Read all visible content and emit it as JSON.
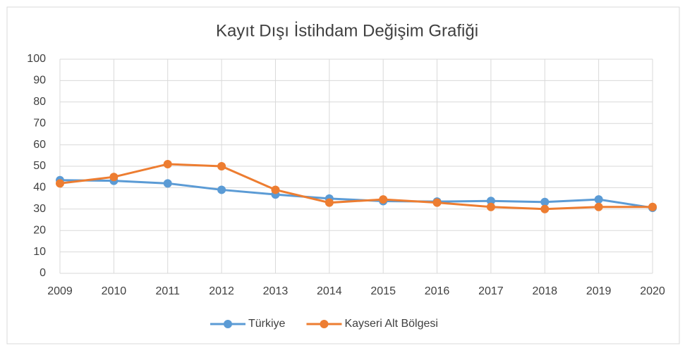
{
  "chart_data": {
    "type": "line",
    "title": "Kayıt Dışı İstihdam Değişim Grafiği",
    "categories": [
      "2009",
      "2010",
      "2011",
      "2012",
      "2013",
      "2014",
      "2015",
      "2016",
      "2017",
      "2018",
      "2019",
      "2020"
    ],
    "series": [
      {
        "name": "Türkiye",
        "color": "#5b9bd5",
        "values": [
          43.5,
          43.2,
          42,
          39,
          36.8,
          34.9,
          33.7,
          33.5,
          33.8,
          33.3,
          34.5,
          30.6
        ]
      },
      {
        "name": "Kayseri Alt Bölgesi",
        "color": "#ed7d31",
        "values": [
          42,
          45,
          51,
          50,
          39,
          33,
          34.5,
          33,
          31,
          30,
          31,
          31
        ]
      }
    ],
    "ylim": [
      0,
      100
    ],
    "yticks": [
      0,
      10,
      20,
      30,
      40,
      50,
      60,
      70,
      80,
      90,
      100
    ],
    "grid": true,
    "legend": "bottom"
  }
}
